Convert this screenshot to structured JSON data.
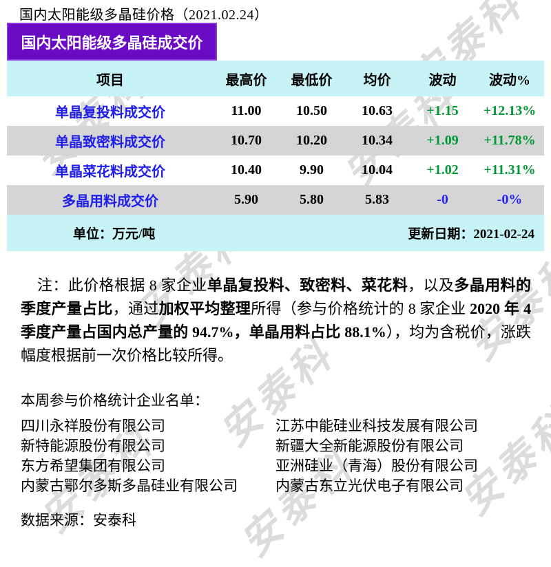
{
  "page": {
    "title": "国内太阳能级多晶硅价格（2021.02.24）",
    "banner": "国内太阳能级多晶硅成交价"
  },
  "table": {
    "headers": [
      "项目",
      "最高价",
      "最低价",
      "均价",
      "波动",
      "波动%"
    ],
    "rows": [
      {
        "item": "单晶复投料成交价",
        "high": "11.00",
        "low": "10.50",
        "avg": "10.63",
        "change": "+1.15",
        "change_pct": "+12.13%",
        "trend": "up"
      },
      {
        "item": "单晶致密料成交价",
        "high": "10.70",
        "low": "10.20",
        "avg": "10.34",
        "change": "+1.09",
        "change_pct": "+11.78%",
        "trend": "up"
      },
      {
        "item": "单晶菜花料成交价",
        "high": "10.40",
        "low": "9.90",
        "avg": "10.04",
        "change": "+1.02",
        "change_pct": "+11.31%",
        "trend": "up"
      },
      {
        "item": "多晶用料成交价",
        "high": "5.90",
        "low": "5.80",
        "avg": "5.83",
        "change": "-0",
        "change_pct": "-0%",
        "trend": "flat"
      }
    ],
    "unit_label": "单位：万元/吨",
    "update_label": "更新日期：2021-02-24"
  },
  "note": {
    "segments": [
      {
        "text": "注：此价格根据 8 家企业",
        "bold": false
      },
      {
        "text": "单晶复投料、致密料、菜花料",
        "bold": true
      },
      {
        "text": "，以及",
        "bold": false
      },
      {
        "text": "多晶用料的季度产量占比",
        "bold": true
      },
      {
        "text": "，通过",
        "bold": false
      },
      {
        "text": "加权平均整理",
        "bold": true
      },
      {
        "text": "所得（参与价格统计的 8 家企业 ",
        "bold": false
      },
      {
        "text": "2020 年 4 季度产量占国内总产量的 94.7%，单晶用料占比 88.1%",
        "bold": true
      },
      {
        "text": "），均为含税价，涨跌幅度根据前一次价格比较所得。",
        "bold": false
      }
    ]
  },
  "companies": {
    "heading": "本周参与价格统计企业名单：",
    "left": [
      "四川永祥股份有限公司",
      "新特能源股份有限公司",
      "东方希望集团有限公司",
      "内蒙古鄂尔多斯多晶硅业有限公司"
    ],
    "right": [
      "江苏中能硅业科技发展有限公司",
      "新疆大全新能源股份有限公司",
      "亚洲硅业（青海）股份有限公司",
      "内蒙古东立光伏电子有限公司"
    ]
  },
  "source": "数据来源：安泰科",
  "watermark": {
    "text": "安泰科"
  },
  "colors": {
    "banner_purple": "#6A0AC4",
    "banner_border": "#8C3AD9",
    "header_cyan": "#C7F3F6",
    "row_gray": "#D5D5D5",
    "label_blue": "#1E1EE8",
    "change_up": "#009933",
    "change_flat": "#2222EE",
    "watermark_gray": "#B2B2B2"
  }
}
